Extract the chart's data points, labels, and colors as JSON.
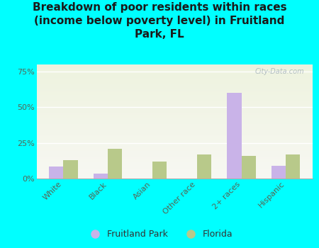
{
  "title": "Breakdown of poor residents within races\n(income below poverty level) in Fruitland\nPark, FL",
  "categories": [
    "White",
    "Black",
    "Asian",
    "Other race",
    "2+ races",
    "Hispanic"
  ],
  "fruitland_park": [
    8.5,
    3.5,
    0.0,
    0.0,
    60.0,
    9.0
  ],
  "florida": [
    13.0,
    21.0,
    12.0,
    17.0,
    16.0,
    17.0
  ],
  "fp_color": "#c9b3e8",
  "fl_color": "#b8c98a",
  "background_color": "#00ffff",
  "plot_bg_top": "#e8f0d8",
  "plot_bg_bottom": "#d8ecc8",
  "ylim": [
    0,
    80
  ],
  "yticks": [
    0,
    25,
    50,
    75
  ],
  "ytick_labels": [
    "0%",
    "25%",
    "50%",
    "75%"
  ],
  "bar_width": 0.32,
  "title_fontsize": 11,
  "tick_fontsize": 8,
  "legend_fontsize": 9,
  "watermark": "City-Data.com",
  "axis_label_color": "#556655"
}
